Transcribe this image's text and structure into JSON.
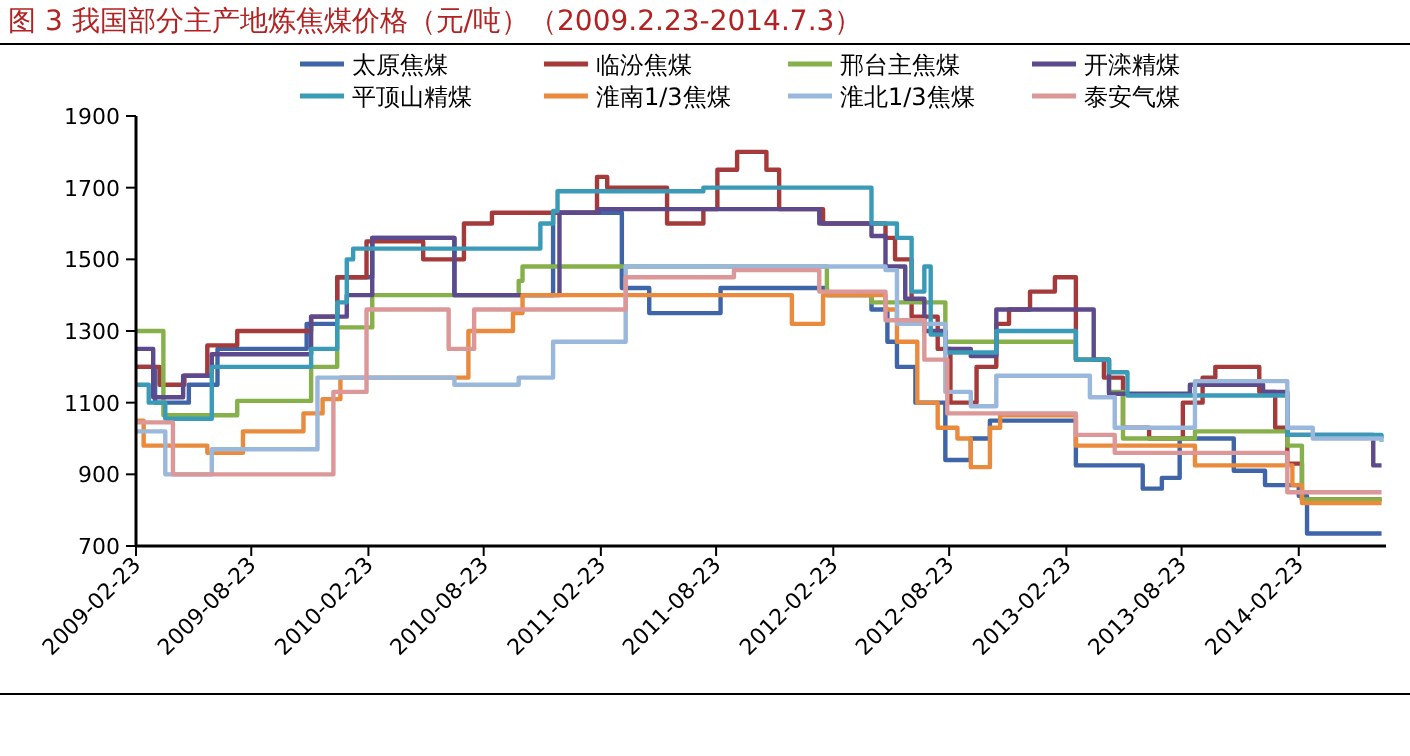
{
  "chart_data": {
    "type": "step",
    "title": "图 3 我国部分主产地炼焦煤价格（元/吨）（2009.2.23-2014.7.3）",
    "legend": "top",
    "grid": false,
    "line_style": "solid",
    "xlim": [
      "2009-02-23",
      "2014-07-10"
    ],
    "xticks": [
      "2009-02-23",
      "2009-08-23",
      "2010-02-23",
      "2010-08-23",
      "2011-02-23",
      "2011-08-23",
      "2012-02-23",
      "2012-08-23",
      "2013-02-23",
      "2013-08-23",
      "2014-02-23"
    ],
    "ylim": [
      700,
      1900
    ],
    "yticks": [
      700,
      900,
      1100,
      1300,
      1500,
      1700,
      1900
    ],
    "series": [
      {
        "name": "太原焦煤",
        "color": "#3f64a8",
        "x": [
          "2009-02-23",
          "2009-03-25",
          "2009-05-17",
          "2009-07-01",
          "2009-11-18",
          "2010-01-05",
          "2010-03-01",
          "2010-07-08",
          "2010-12-10",
          "2011-03-28",
          "2011-05-10",
          "2011-08-30",
          "2012-02-13",
          "2012-04-23",
          "2012-05-18",
          "2012-06-02",
          "2012-07-01",
          "2012-08-17",
          "2012-09-26",
          "2012-10-26",
          "2013-03-10",
          "2013-06-23",
          "2013-07-23",
          "2013-08-20",
          "2013-11-13",
          "2014-01-01",
          "2014-02-23",
          "2014-03-08",
          "2014-07-03"
        ],
        "values": [
          1200,
          1100,
          1150,
          1250,
          1320,
          1450,
          1560,
          1400,
          1630,
          1420,
          1350,
          1420,
          1400,
          1360,
          1270,
          1200,
          1100,
          940,
          1000,
          1050,
          925,
          860,
          890,
          1000,
          910,
          870,
          840,
          735,
          735
        ]
      },
      {
        "name": "临汾焦煤",
        "color": "#a53a3a",
        "x": [
          "2009-02-23",
          "2009-04-01",
          "2009-05-10",
          "2009-06-15",
          "2009-08-01",
          "2009-11-25",
          "2010-01-05",
          "2010-02-20",
          "2010-05-20",
          "2010-07-23",
          "2010-09-05",
          "2011-02-17",
          "2011-03-05",
          "2011-06-07",
          "2011-08-03",
          "2011-08-25",
          "2011-09-25",
          "2011-11-10",
          "2011-11-30",
          "2012-02-07",
          "2012-05-15",
          "2012-05-30",
          "2012-06-25",
          "2012-08-05",
          "2012-08-25",
          "2012-10-05",
          "2012-11-05",
          "2012-11-25",
          "2012-12-28",
          "2013-02-05",
          "2013-03-10",
          "2013-04-23",
          "2013-05-23",
          "2013-07-03",
          "2013-08-25",
          "2013-09-25",
          "2013-10-15",
          "2013-12-23",
          "2014-01-17",
          "2014-02-05",
          "2014-02-28",
          "2014-07-03"
        ],
        "values": [
          1200,
          1150,
          1175,
          1260,
          1300,
          1340,
          1450,
          1550,
          1500,
          1600,
          1630,
          1730,
          1700,
          1600,
          1640,
          1750,
          1800,
          1750,
          1640,
          1600,
          1560,
          1500,
          1340,
          1250,
          1100,
          1200,
          1320,
          1360,
          1410,
          1450,
          1220,
          1170,
          1030,
          1000,
          1100,
          1170,
          1200,
          1130,
          1030,
          930,
          830,
          830
        ]
      },
      {
        "name": "邢台主焦煤",
        "color": "#86b04a",
        "x": [
          "2009-02-23",
          "2009-04-07",
          "2009-08-01",
          "2009-11-25",
          "2010-01-05",
          "2010-03-01",
          "2010-10-17",
          "2010-10-23",
          "2012-02-13",
          "2012-04-23",
          "2012-08-17",
          "2013-03-10",
          "2013-05-01",
          "2013-05-23",
          "2013-09-13",
          "2014-02-05",
          "2014-02-28",
          "2014-07-03"
        ],
        "values": [
          1300,
          1065,
          1105,
          1200,
          1310,
          1400,
          1440,
          1480,
          1400,
          1380,
          1270,
          1220,
          1130,
          1000,
          1020,
          980,
          830,
          830
        ]
      },
      {
        "name": "开滦精煤",
        "color": "#5c4a8c",
        "x": [
          "2009-02-23",
          "2009-03-22",
          "2009-05-08",
          "2009-06-22",
          "2009-11-25",
          "2010-01-20",
          "2010-03-01",
          "2010-07-08",
          "2010-12-20",
          "2011-02-20",
          "2012-02-01",
          "2012-04-23",
          "2012-05-15",
          "2012-06-15",
          "2012-07-15",
          "2012-08-17",
          "2012-09-26",
          "2012-11-05",
          "2013-04-07",
          "2013-05-01",
          "2013-09-05",
          "2013-12-29",
          "2014-02-05",
          "2014-06-20",
          "2014-07-03"
        ],
        "values": [
          1250,
          1115,
          1175,
          1235,
          1340,
          1400,
          1560,
          1400,
          1630,
          1640,
          1600,
          1565,
          1480,
          1390,
          1300,
          1250,
          1230,
          1360,
          1220,
          1125,
          1150,
          1130,
          1010,
          925,
          925
        ]
      },
      {
        "name": "平顶山精煤",
        "color": "#3a9bb8",
        "x": [
          "2009-02-23",
          "2009-03-15",
          "2009-04-10",
          "2009-06-22",
          "2009-11-25",
          "2010-01-05",
          "2010-01-20",
          "2010-01-30",
          "2010-11-20",
          "2010-12-10",
          "2010-12-17",
          "2011-08-03",
          "2012-04-23",
          "2012-06-02",
          "2012-06-25",
          "2012-07-15",
          "2012-07-25",
          "2012-08-17",
          "2012-11-05",
          "2013-03-10",
          "2013-05-01",
          "2013-05-30",
          "2014-02-05",
          "2014-07-03"
        ],
        "values": [
          1150,
          1100,
          1055,
          1200,
          1250,
          1380,
          1500,
          1530,
          1600,
          1635,
          1690,
          1700,
          1600,
          1560,
          1410,
          1480,
          1290,
          1240,
          1300,
          1220,
          1185,
          1120,
          1010,
          1000
        ]
      },
      {
        "name": "淮南1/3焦煤",
        "color": "#e98a3c",
        "x": [
          "2009-02-23",
          "2009-03-07",
          "2009-06-15",
          "2009-08-10",
          "2009-11-13",
          "2009-12-13",
          "2010-01-10",
          "2010-07-30",
          "2010-10-08",
          "2010-10-23",
          "2011-12-20",
          "2012-02-07",
          "2012-05-15",
          "2012-06-02",
          "2012-07-04",
          "2012-08-05",
          "2012-09-05",
          "2012-09-26",
          "2012-10-26",
          "2012-11-11",
          "2013-03-10",
          "2013-09-13",
          "2014-02-13",
          "2014-02-28",
          "2014-07-03"
        ],
        "values": [
          1050,
          980,
          960,
          1020,
          1070,
          1110,
          1170,
          1300,
          1350,
          1400,
          1320,
          1400,
          1360,
          1270,
          1100,
          1030,
          1000,
          920,
          1030,
          1065,
          980,
          925,
          870,
          820,
          820
        ]
      },
      {
        "name": "淮北1/3焦煤",
        "color": "#9ab7dc",
        "x": [
          "2009-02-23",
          "2009-04-10",
          "2009-06-22",
          "2009-12-05",
          "2010-07-08",
          "2010-10-17",
          "2010-12-10",
          "2011-04-03",
          "2012-05-15",
          "2012-06-02",
          "2012-08-17",
          "2012-09-26",
          "2012-11-05",
          "2013-04-01",
          "2013-05-10",
          "2013-09-13",
          "2014-02-05",
          "2014-03-17",
          "2014-07-03"
        ],
        "values": [
          1020,
          900,
          970,
          1170,
          1150,
          1170,
          1270,
          1480,
          1470,
          1320,
          1130,
          1090,
          1175,
          1115,
          1030,
          1160,
          1030,
          1000,
          990
        ]
      },
      {
        "name": "泰安气煤",
        "color": "#dc9898",
        "x": [
          "2009-02-23",
          "2009-04-22",
          "2009-12-30",
          "2010-02-20",
          "2010-06-29",
          "2010-08-08",
          "2011-04-03",
          "2011-09-20",
          "2012-02-01",
          "2012-05-15",
          "2012-07-15",
          "2012-08-20",
          "2013-03-10",
          "2013-05-10",
          "2014-02-05",
          "2014-07-03"
        ],
        "values": [
          1045,
          900,
          1130,
          1360,
          1250,
          1360,
          1450,
          1470,
          1410,
          1330,
          1220,
          1070,
          1010,
          960,
          850,
          850
        ]
      }
    ]
  }
}
